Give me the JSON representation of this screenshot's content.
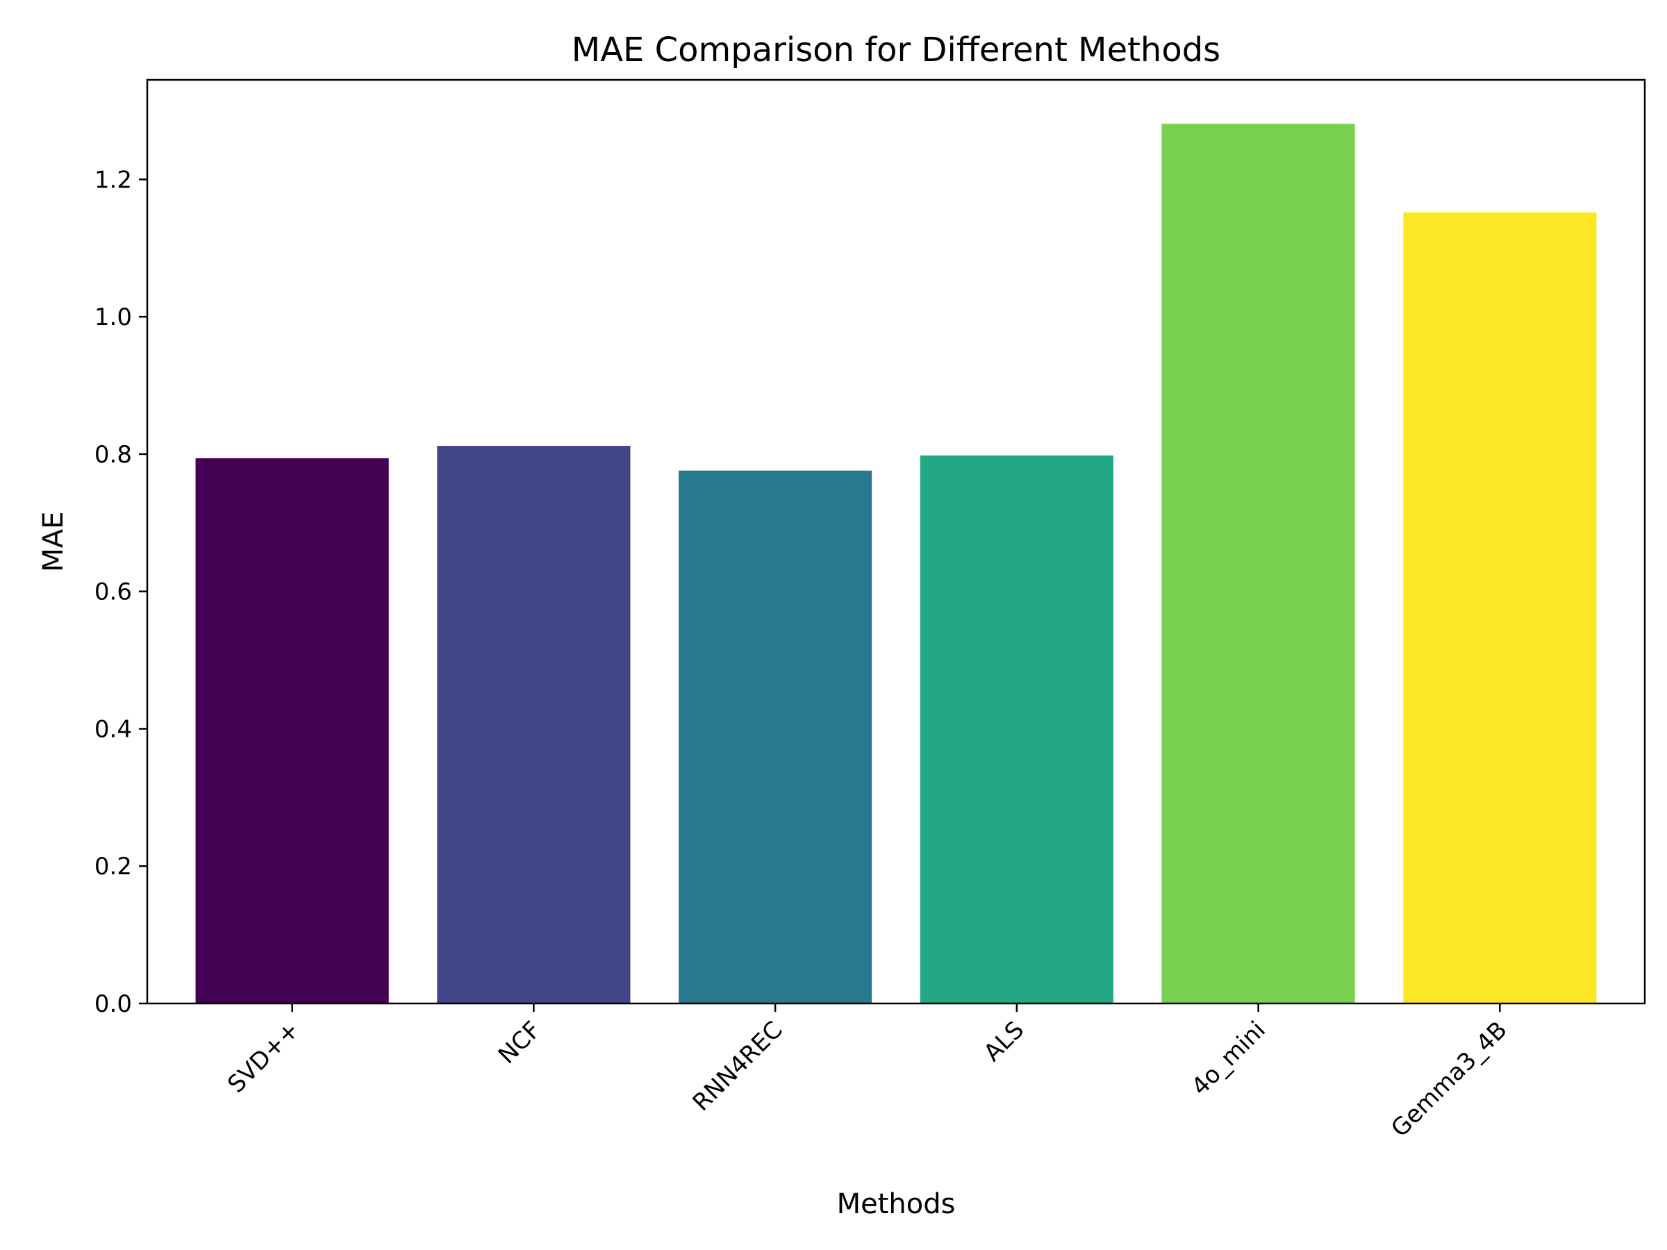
{
  "chart_data": {
    "type": "bar",
    "title": "MAE Comparison for Different Methods",
    "xlabel": "Methods",
    "ylabel": "MAE",
    "categories": [
      "SVD++",
      "NCF",
      "RNN4REC",
      "ALS",
      "4o_mini",
      "Gemma3_4B"
    ],
    "values": [
      0.794,
      0.812,
      0.776,
      0.798,
      1.281,
      1.152
    ],
    "colors": [
      "#440154",
      "#414487",
      "#2a788e",
      "#22a884",
      "#7ad151",
      "#fde725"
    ],
    "ylim": [
      0,
      1.345
    ],
    "yticks": [
      0.0,
      0.2,
      0.4,
      0.6,
      0.8,
      1.0,
      1.2
    ],
    "ytick_labels": [
      "0.0",
      "0.2",
      "0.4",
      "0.6",
      "0.8",
      "1.0",
      "1.2"
    ],
    "grid": false,
    "legend": "none"
  }
}
